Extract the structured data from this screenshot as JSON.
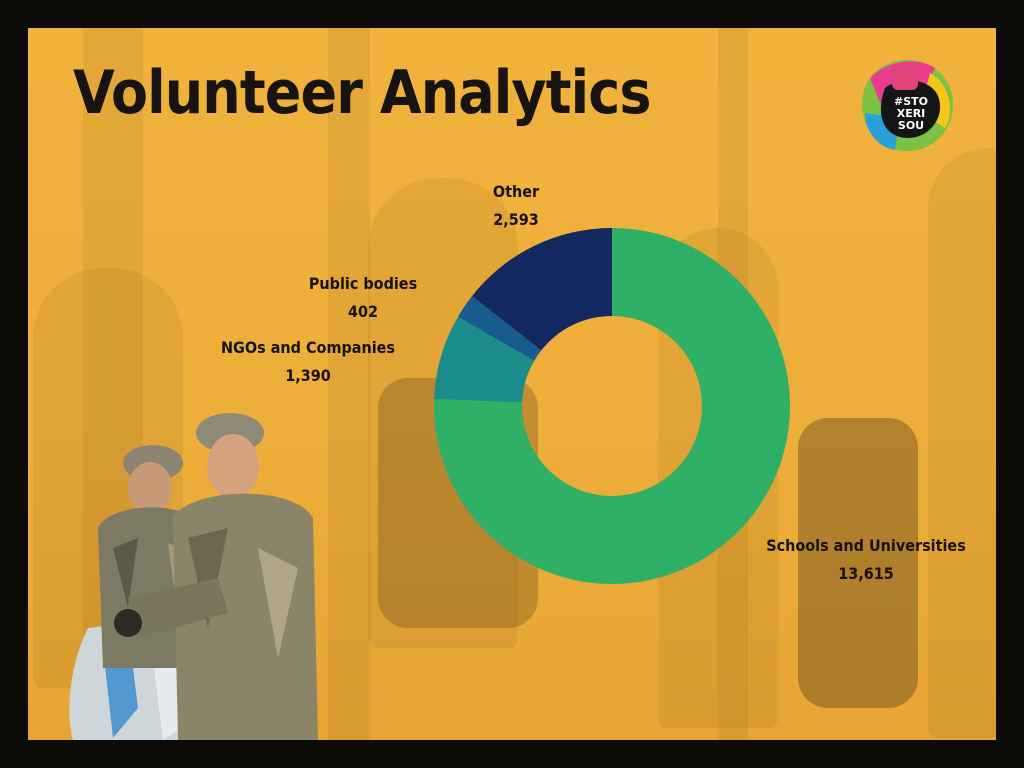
{
  "slide": {
    "title": "Volunteer Analytics",
    "logo_text": [
      "#STO",
      "XERI",
      "SOU"
    ]
  },
  "colors": {
    "background": "#efb03b",
    "title": "#171310",
    "schools": "#2fb066",
    "ngos": "#1a8c8a",
    "public_bodies": "#165c8e",
    "other": "#12285e"
  },
  "chart_data": {
    "type": "pie",
    "donut": true,
    "title": "",
    "labels": [
      "Schools and Universities",
      "NGOs and Companies",
      "Public bodies",
      "Other"
    ],
    "values": [
      13615,
      1390,
      402,
      2593
    ],
    "value_labels": [
      "13,615",
      "1,390",
      "402",
      "2,593"
    ],
    "colors": [
      "#2fb066",
      "#1a8c8a",
      "#165c8e",
      "#12285e"
    ]
  }
}
